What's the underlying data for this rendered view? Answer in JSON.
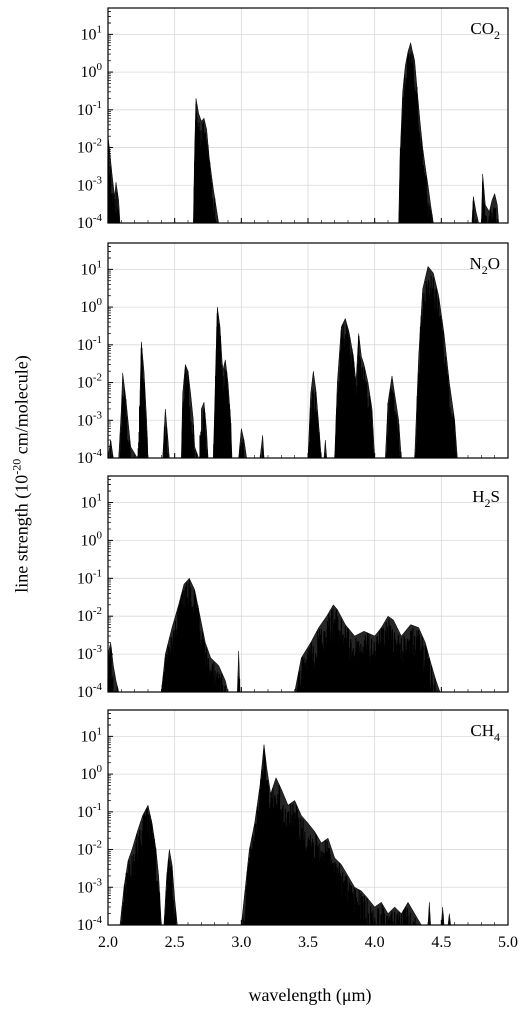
{
  "figure": {
    "ylabel_prefix": "line strength (10",
    "ylabel_exp": "-20",
    "ylabel_suffix": " cm/molecule)",
    "xlabel": "wavelength (μm)",
    "x_ticks": [
      "2.0",
      "2.5",
      "3.0",
      "3.5",
      "4.0",
      "4.5",
      "5.0"
    ],
    "y_tick_base": "10",
    "y_tick_exponents": [
      "-4",
      "-3",
      "-2",
      "-1",
      "0",
      "1"
    ]
  },
  "chart_data": [
    {
      "type": "area",
      "log_y": true,
      "grid": true,
      "xlim": [
        2.0,
        5.0
      ],
      "ylim": [
        0.0001,
        50
      ],
      "xlabel": "wavelength (μm)",
      "ylabel": "line strength (10^-20 cm/molecule)",
      "x_ticks": [
        2.0,
        2.5,
        3.0,
        3.5,
        4.0,
        4.5,
        5.0
      ],
      "y_ticks": [
        0.0001,
        0.001,
        0.01,
        0.1,
        1,
        10
      ],
      "label": {
        "main": "CO",
        "sub": "2",
        "post": ""
      },
      "envelope": [
        [
          2.0,
          0.02
        ],
        [
          2.01,
          0.01
        ],
        [
          2.03,
          0.002
        ],
        [
          2.05,
          0.0005
        ],
        [
          2.06,
          0.0012
        ],
        [
          2.08,
          0.0004
        ],
        [
          2.09,
          0.0001
        ],
        [
          2.64,
          0.0001
        ],
        [
          2.65,
          0.01
        ],
        [
          2.66,
          0.2
        ],
        [
          2.68,
          0.08
        ],
        [
          2.7,
          0.05
        ],
        [
          2.72,
          0.06
        ],
        [
          2.74,
          0.03
        ],
        [
          2.76,
          0.005
        ],
        [
          2.79,
          0.0008
        ],
        [
          2.83,
          0.0001
        ],
        [
          4.18,
          0.0001
        ],
        [
          4.19,
          0.005
        ],
        [
          4.21,
          0.3
        ],
        [
          4.23,
          1.5
        ],
        [
          4.25,
          3.5
        ],
        [
          4.27,
          6
        ],
        [
          4.28,
          4
        ],
        [
          4.3,
          2
        ],
        [
          4.32,
          0.3
        ],
        [
          4.34,
          0.05
        ],
        [
          4.36,
          0.01
        ],
        [
          4.38,
          0.003
        ],
        [
          4.4,
          0.001
        ],
        [
          4.42,
          0.0003
        ],
        [
          4.44,
          0.0001
        ],
        [
          4.73,
          0.0001
        ],
        [
          4.74,
          0.0005
        ],
        [
          4.76,
          0.0002
        ],
        [
          4.78,
          0.0001
        ],
        [
          4.8,
          0.0001
        ],
        [
          4.81,
          0.002
        ],
        [
          4.83,
          0.0003
        ],
        [
          4.86,
          0.0002
        ],
        [
          4.88,
          0.0004
        ],
        [
          4.9,
          0.0006
        ],
        [
          4.92,
          0.0003
        ],
        [
          4.93,
          0.0001
        ]
      ]
    },
    {
      "type": "area",
      "log_y": true,
      "grid": true,
      "xlim": [
        2.0,
        5.0
      ],
      "ylim": [
        0.0001,
        50
      ],
      "xlabel": "wavelength (μm)",
      "ylabel": "line strength (10^-20 cm/molecule)",
      "x_ticks": [
        2.0,
        2.5,
        3.0,
        3.5,
        4.0,
        4.5,
        5.0
      ],
      "y_ticks": [
        0.0001,
        0.001,
        0.01,
        0.1,
        1,
        10
      ],
      "label": {
        "main": "N",
        "sub": "2",
        "post": "O"
      },
      "envelope": [
        [
          2.0,
          0.0001
        ],
        [
          2.02,
          0.0003
        ],
        [
          2.04,
          0.0001
        ],
        [
          2.08,
          0.0001
        ],
        [
          2.1,
          0.002
        ],
        [
          2.11,
          0.018
        ],
        [
          2.13,
          0.005
        ],
        [
          2.15,
          0.001
        ],
        [
          2.17,
          0.0002
        ],
        [
          2.22,
          0.0001
        ],
        [
          2.24,
          0.005
        ],
        [
          2.25,
          0.12
        ],
        [
          2.27,
          0.02
        ],
        [
          2.29,
          0.001
        ],
        [
          2.3,
          0.0001
        ],
        [
          2.41,
          0.0001
        ],
        [
          2.43,
          0.002
        ],
        [
          2.45,
          0.0003
        ],
        [
          2.46,
          0.0001
        ],
        [
          2.55,
          0.0001
        ],
        [
          2.56,
          0.005
        ],
        [
          2.58,
          0.03
        ],
        [
          2.6,
          0.02
        ],
        [
          2.62,
          0.005
        ],
        [
          2.64,
          0.001
        ],
        [
          2.65,
          0.0002
        ],
        [
          2.68,
          0.0001
        ],
        [
          2.7,
          0.002
        ],
        [
          2.72,
          0.003
        ],
        [
          2.74,
          0.0005
        ],
        [
          2.75,
          0.0001
        ],
        [
          2.79,
          0.0001
        ],
        [
          2.81,
          0.05
        ],
        [
          2.82,
          1.0
        ],
        [
          2.84,
          0.3
        ],
        [
          2.86,
          0.02
        ],
        [
          2.88,
          0.04
        ],
        [
          2.9,
          0.01
        ],
        [
          2.92,
          0.001
        ],
        [
          2.93,
          0.0001
        ],
        [
          2.98,
          0.0001
        ],
        [
          3.0,
          0.0006
        ],
        [
          3.02,
          0.0003
        ],
        [
          3.04,
          0.0001
        ],
        [
          3.14,
          0.0001
        ],
        [
          3.16,
          0.0004
        ],
        [
          3.17,
          0.0001
        ],
        [
          3.5,
          0.0001
        ],
        [
          3.52,
          0.005
        ],
        [
          3.54,
          0.02
        ],
        [
          3.56,
          0.006
        ],
        [
          3.58,
          0.0008
        ],
        [
          3.6,
          0.0001
        ],
        [
          3.62,
          0.0001
        ],
        [
          3.63,
          0.0003
        ],
        [
          3.64,
          0.0001
        ],
        [
          3.7,
          0.0001
        ],
        [
          3.72,
          0.01
        ],
        [
          3.75,
          0.3
        ],
        [
          3.78,
          0.5
        ],
        [
          3.81,
          0.2
        ],
        [
          3.84,
          0.05
        ],
        [
          3.86,
          0.01
        ],
        [
          3.88,
          0.2
        ],
        [
          3.9,
          0.05
        ],
        [
          3.92,
          0.03
        ],
        [
          3.95,
          0.01
        ],
        [
          3.98,
          0.002
        ],
        [
          4.0,
          0.0001
        ],
        [
          4.08,
          0.0001
        ],
        [
          4.1,
          0.003
        ],
        [
          4.13,
          0.015
        ],
        [
          4.15,
          0.005
        ],
        [
          4.18,
          0.001
        ],
        [
          4.2,
          0.0001
        ],
        [
          4.3,
          0.0001
        ],
        [
          4.33,
          0.05
        ],
        [
          4.36,
          3
        ],
        [
          4.4,
          12
        ],
        [
          4.44,
          8
        ],
        [
          4.48,
          2
        ],
        [
          4.52,
          0.2
        ],
        [
          4.56,
          0.01
        ],
        [
          4.6,
          0.001
        ],
        [
          4.62,
          0.0001
        ]
      ]
    },
    {
      "type": "area",
      "log_y": true,
      "grid": true,
      "xlim": [
        2.0,
        5.0
      ],
      "ylim": [
        0.0001,
        50
      ],
      "xlabel": "wavelength (μm)",
      "ylabel": "line strength (10^-20 cm/molecule)",
      "x_ticks": [
        2.0,
        2.5,
        3.0,
        3.5,
        4.0,
        4.5,
        5.0
      ],
      "y_ticks": [
        0.0001,
        0.001,
        0.01,
        0.1,
        1,
        10
      ],
      "label": {
        "main": "H",
        "sub": "2",
        "post": "S"
      },
      "envelope": [
        [
          2.0,
          0.001
        ],
        [
          2.02,
          0.002
        ],
        [
          2.04,
          0.0005
        ],
        [
          2.06,
          0.0002
        ],
        [
          2.08,
          0.0001
        ],
        [
          2.4,
          0.0001
        ],
        [
          2.43,
          0.001
        ],
        [
          2.48,
          0.005
        ],
        [
          2.53,
          0.02
        ],
        [
          2.57,
          0.07
        ],
        [
          2.61,
          0.1
        ],
        [
          2.65,
          0.05
        ],
        [
          2.69,
          0.01
        ],
        [
          2.73,
          0.002
        ],
        [
          2.77,
          0.0008
        ],
        [
          2.83,
          0.0005
        ],
        [
          2.88,
          0.0002
        ],
        [
          2.9,
          0.0001
        ],
        [
          2.97,
          0.0001
        ],
        [
          2.98,
          0.0012
        ],
        [
          2.99,
          0.0001
        ],
        [
          3.4,
          0.0001
        ],
        [
          3.45,
          0.0008
        ],
        [
          3.52,
          0.002
        ],
        [
          3.58,
          0.005
        ],
        [
          3.64,
          0.01
        ],
        [
          3.69,
          0.02
        ],
        [
          3.72,
          0.015
        ],
        [
          3.78,
          0.006
        ],
        [
          3.85,
          0.003
        ],
        [
          3.92,
          0.004
        ],
        [
          4.0,
          0.003
        ],
        [
          4.05,
          0.005
        ],
        [
          4.1,
          0.01
        ],
        [
          4.14,
          0.008
        ],
        [
          4.2,
          0.003
        ],
        [
          4.27,
          0.006
        ],
        [
          4.33,
          0.005
        ],
        [
          4.38,
          0.002
        ],
        [
          4.42,
          0.0006
        ],
        [
          4.46,
          0.0002
        ],
        [
          4.49,
          0.0001
        ]
      ]
    },
    {
      "type": "area",
      "log_y": true,
      "grid": true,
      "xlim": [
        2.0,
        5.0
      ],
      "ylim": [
        0.0001,
        50
      ],
      "xlabel": "wavelength (μm)",
      "ylabel": "line strength (10^-20 cm/molecule)",
      "x_ticks": [
        2.0,
        2.5,
        3.0,
        3.5,
        4.0,
        4.5,
        5.0
      ],
      "y_ticks": [
        0.0001,
        0.001,
        0.01,
        0.1,
        1,
        10
      ],
      "label": {
        "main": "CH",
        "sub": "4",
        "post": ""
      },
      "envelope": [
        [
          2.09,
          0.0001
        ],
        [
          2.12,
          0.001
        ],
        [
          2.15,
          0.005
        ],
        [
          2.18,
          0.01
        ],
        [
          2.22,
          0.03
        ],
        [
          2.26,
          0.08
        ],
        [
          2.3,
          0.15
        ],
        [
          2.33,
          0.05
        ],
        [
          2.36,
          0.01
        ],
        [
          2.38,
          0.002
        ],
        [
          2.4,
          0.0001
        ],
        [
          2.42,
          0.0001
        ],
        [
          2.44,
          0.002
        ],
        [
          2.46,
          0.01
        ],
        [
          2.48,
          0.004
        ],
        [
          2.5,
          0.0005
        ],
        [
          2.52,
          0.0001
        ],
        [
          3.0,
          0.0001
        ],
        [
          3.03,
          0.001
        ],
        [
          3.06,
          0.01
        ],
        [
          3.1,
          0.05
        ],
        [
          3.14,
          0.5
        ],
        [
          3.17,
          6
        ],
        [
          3.19,
          1.5
        ],
        [
          3.22,
          0.3
        ],
        [
          3.26,
          0.8
        ],
        [
          3.3,
          0.4
        ],
        [
          3.35,
          0.15
        ],
        [
          3.4,
          0.2
        ],
        [
          3.45,
          0.08
        ],
        [
          3.5,
          0.05
        ],
        [
          3.55,
          0.03
        ],
        [
          3.6,
          0.015
        ],
        [
          3.65,
          0.02
        ],
        [
          3.7,
          0.006
        ],
        [
          3.75,
          0.004
        ],
        [
          3.8,
          0.002
        ],
        [
          3.85,
          0.001
        ],
        [
          3.9,
          0.0008
        ],
        [
          3.95,
          0.0005
        ],
        [
          4.0,
          0.0003
        ],
        [
          4.05,
          0.0004
        ],
        [
          4.1,
          0.0002
        ],
        [
          4.15,
          0.0003
        ],
        [
          4.2,
          0.0002
        ],
        [
          4.25,
          0.0004
        ],
        [
          4.3,
          0.0002
        ],
        [
          4.35,
          0.0001
        ],
        [
          4.4,
          0.0001
        ],
        [
          4.41,
          0.0004
        ],
        [
          4.42,
          0.0001
        ],
        [
          4.5,
          0.0001
        ],
        [
          4.51,
          0.0003
        ],
        [
          4.52,
          0.0001
        ],
        [
          4.55,
          0.0001
        ],
        [
          4.56,
          0.0002
        ],
        [
          4.57,
          0.0001
        ]
      ]
    }
  ]
}
